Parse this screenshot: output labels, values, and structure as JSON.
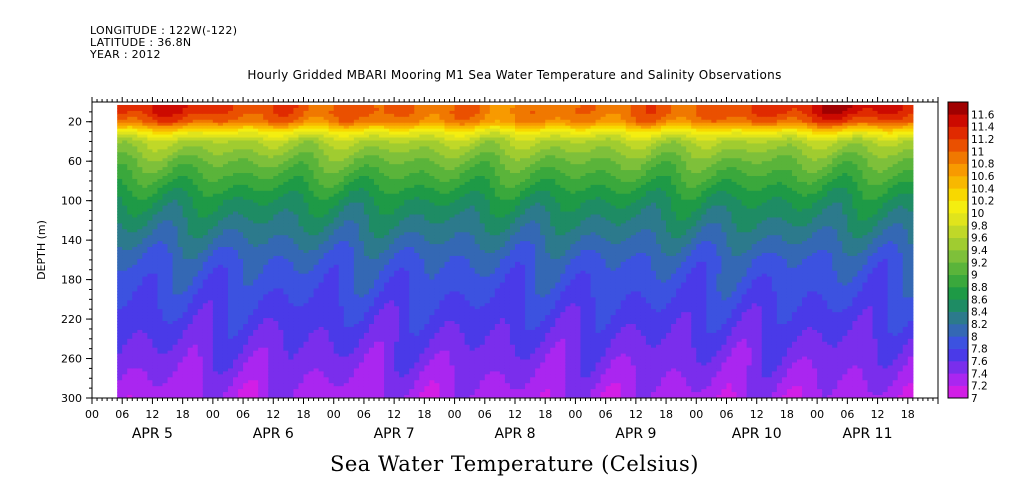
{
  "header": {
    "longitude": "LONGITUDE : 122W(-122)",
    "latitude": "LATITUDE : 36.8N",
    "year": "YEAR : 2012"
  },
  "chart_data": {
    "type": "heatmap",
    "title": "Hourly Gridded MBARI Mooring M1 Sea Water Temperature and Salinity Observations",
    "colorbar_title": "Sea Water Temperature (Celsius)",
    "ylabel": "DEPTH (m)",
    "xlabel": "",
    "y_axis": {
      "range": [
        0,
        300
      ],
      "inverted": true,
      "ticks": [
        20,
        60,
        100,
        140,
        180,
        220,
        260,
        300
      ]
    },
    "x_axis": {
      "range_hours": [
        0,
        168
      ],
      "hour_ticks": [
        {
          "h": 0,
          "label": "00"
        },
        {
          "h": 6,
          "label": "06"
        },
        {
          "h": 12,
          "label": "12"
        },
        {
          "h": 18,
          "label": "18"
        },
        {
          "h": 24,
          "label": "00"
        },
        {
          "h": 30,
          "label": "06"
        },
        {
          "h": 36,
          "label": "12"
        },
        {
          "h": 42,
          "label": "18"
        },
        {
          "h": 48,
          "label": "00"
        },
        {
          "h": 54,
          "label": "06"
        },
        {
          "h": 60,
          "label": "12"
        },
        {
          "h": 66,
          "label": "18"
        },
        {
          "h": 72,
          "label": "00"
        },
        {
          "h": 78,
          "label": "06"
        },
        {
          "h": 84,
          "label": "12"
        },
        {
          "h": 90,
          "label": "18"
        },
        {
          "h": 96,
          "label": "00"
        },
        {
          "h": 102,
          "label": "06"
        },
        {
          "h": 108,
          "label": "12"
        },
        {
          "h": 114,
          "label": "18"
        },
        {
          "h": 120,
          "label": "00"
        },
        {
          "h": 126,
          "label": "06"
        },
        {
          "h": 132,
          "label": "12"
        },
        {
          "h": 138,
          "label": "18"
        },
        {
          "h": 144,
          "label": "00"
        },
        {
          "h": 150,
          "label": "06"
        },
        {
          "h": 156,
          "label": "12"
        },
        {
          "h": 162,
          "label": "18"
        }
      ],
      "date_labels": [
        {
          "h": 12,
          "label": "APR  5"
        },
        {
          "h": 36,
          "label": "APR  6"
        },
        {
          "h": 60,
          "label": "APR  7"
        },
        {
          "h": 84,
          "label": "APR  8"
        },
        {
          "h": 108,
          "label": "APR  9"
        },
        {
          "h": 132,
          "label": "APR 10"
        },
        {
          "h": 154,
          "label": "APR 11"
        }
      ],
      "data_start_hour": 5,
      "data_end_hour": 163
    },
    "colorbar": {
      "levels": [
        7,
        7.2,
        7.4,
        7.6,
        7.8,
        8,
        8.2,
        8.4,
        8.6,
        8.8,
        9,
        9.2,
        9.4,
        9.6,
        9.8,
        10,
        10.2,
        10.4,
        10.6,
        10.8,
        11,
        11.2,
        11.4,
        11.6
      ],
      "labels": [
        "7",
        "7.2",
        "7.4",
        "7.6",
        "7.8",
        "8",
        "8.2",
        "8.4",
        "8.6",
        "8.8",
        "9",
        "9.2",
        "9.4",
        "9.6",
        "9.8",
        "10",
        "10.2",
        "10.4",
        "10.6",
        "10.8",
        "11",
        "11.2",
        "11.4",
        "11.6"
      ],
      "colors": [
        "#d21ee6",
        "#aa26f0",
        "#7a2eec",
        "#4a3ae8",
        "#3c52e0",
        "#3468b4",
        "#2c7a8c",
        "#1e8c64",
        "#1e9a46",
        "#3aa83c",
        "#5ab43a",
        "#7ec03a",
        "#a0cc30",
        "#c0d828",
        "#e0e41c",
        "#f4ee10",
        "#f8d800",
        "#f8b800",
        "#f89a00",
        "#f07800",
        "#ea5000",
        "#e02a00",
        "#cc0a00",
        "#a00000"
      ]
    },
    "profile": [
      {
        "depth": 10,
        "value": 11.1
      },
      {
        "depth": 20,
        "value": 10.9
      },
      {
        "depth": 30,
        "value": 10.1
      },
      {
        "depth": 40,
        "value": 9.6
      },
      {
        "depth": 60,
        "value": 9.2
      },
      {
        "depth": 80,
        "value": 8.9
      },
      {
        "depth": 100,
        "value": 8.6
      },
      {
        "depth": 130,
        "value": 8.3
      },
      {
        "depth": 160,
        "value": 8.0
      },
      {
        "depth": 200,
        "value": 7.8
      },
      {
        "depth": 240,
        "value": 7.6
      },
      {
        "depth": 280,
        "value": 7.4
      },
      {
        "depth": 300,
        "value": 7.3
      }
    ]
  }
}
